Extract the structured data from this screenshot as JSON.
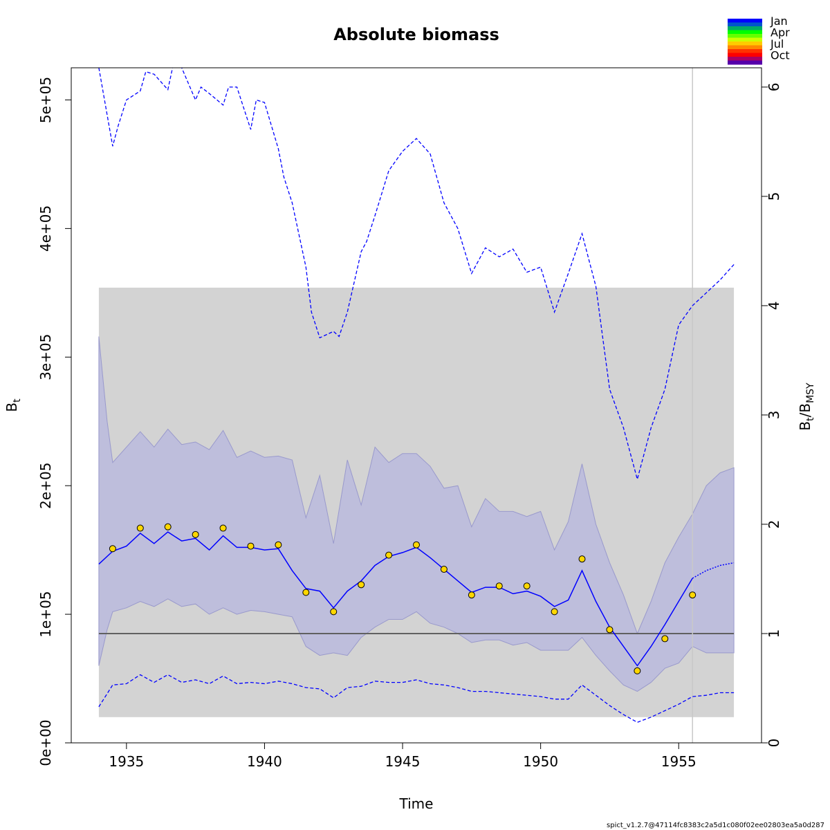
{
  "chart_data": {
    "type": "line",
    "title": "Absolute biomass",
    "xlabel": "Time",
    "ylabel": "B",
    "ylabel_sub": "t",
    "y2label_num": "B",
    "y2label_num_sub": "t",
    "y2label_den": "B",
    "y2label_den_sub": "MSY",
    "xlim": [
      1933.0,
      1958.0
    ],
    "ylim": [
      0,
      525000
    ],
    "y2_per_unit": 85000,
    "x_ticks": [
      1935,
      1940,
      1945,
      1950,
      1955
    ],
    "x_tick_labels": [
      "1935",
      "1940",
      "1945",
      "1950",
      "1955"
    ],
    "y_ticks": [
      0,
      100000,
      200000,
      300000,
      400000,
      500000
    ],
    "y_tick_labels": [
      "0e+00",
      "1e+05",
      "2e+05",
      "3e+05",
      "4e+05",
      "5e+05"
    ],
    "y2_ticks": [
      0,
      1,
      2,
      3,
      4,
      5,
      6
    ],
    "y2_tick_labels": [
      "0",
      "1",
      "2",
      "3",
      "4",
      "5",
      "6"
    ],
    "bmsy_ci": [
      20000,
      354000
    ],
    "bmsy_ci_x": [
      1934.0,
      1957.0
    ],
    "bmsy": 85000,
    "vline_x": 1955.5,
    "observations": {
      "x": [
        1934.5,
        1935.5,
        1936.5,
        1937.5,
        1938.5,
        1939.5,
        1940.5,
        1941.5,
        1942.5,
        1943.5,
        1944.5,
        1945.5,
        1946.5,
        1947.5,
        1948.5,
        1949.5,
        1950.5,
        1951.5,
        1952.5,
        1953.5,
        1954.5,
        1955.5
      ],
      "y": [
        151000,
        167000,
        168000,
        162000,
        167000,
        153000,
        154000,
        117000,
        102000,
        123000,
        146000,
        154000,
        135000,
        115000,
        122000,
        122000,
        102000,
        143000,
        88000,
        56000,
        81000,
        115000
      ]
    },
    "estimate": {
      "x": [
        1934.0,
        1934.5,
        1935.0,
        1935.5,
        1936.0,
        1936.5,
        1937.0,
        1937.5,
        1938.0,
        1938.5,
        1939.0,
        1939.5,
        1940.0,
        1940.5,
        1941.0,
        1941.5,
        1942.0,
        1942.5,
        1943.0,
        1943.5,
        1944.0,
        1944.5,
        1945.0,
        1945.5,
        1946.0,
        1946.5,
        1947.0,
        1947.5,
        1948.0,
        1948.5,
        1949.0,
        1949.5,
        1950.0,
        1950.5,
        1951.0,
        1951.5,
        1952.0,
        1952.5,
        1953.0,
        1953.5,
        1954.0,
        1954.5,
        1955.0,
        1955.5
      ],
      "y": [
        139000,
        149000,
        153000,
        163000,
        155000,
        164000,
        157000,
        159000,
        150000,
        161000,
        152000,
        152000,
        150000,
        151000,
        134000,
        120000,
        118000,
        105000,
        118000,
        126000,
        138000,
        145000,
        148000,
        152000,
        144000,
        135000,
        126000,
        117000,
        121000,
        121000,
        116000,
        118000,
        114000,
        106000,
        111000,
        134000,
        110000,
        90000,
        75000,
        60000,
        75000,
        92000,
        110000,
        128000
      ]
    },
    "forecast": {
      "x": [
        1955.5,
        1956.0,
        1956.5,
        1957.0
      ],
      "y": [
        128000,
        134000,
        138000,
        140000
      ]
    },
    "ci_upper": {
      "x": [
        1934.0,
        1934.3,
        1934.5,
        1935.0,
        1935.5,
        1936.0,
        1936.5,
        1937.0,
        1937.5,
        1938.0,
        1938.5,
        1939.0,
        1939.5,
        1940.0,
        1940.5,
        1941.0,
        1941.5,
        1942.0,
        1942.5,
        1943.0,
        1943.5,
        1944.0,
        1944.5,
        1945.0,
        1945.5,
        1946.0,
        1946.5,
        1947.0,
        1947.5,
        1948.0,
        1948.5,
        1949.0,
        1949.5,
        1950.0,
        1950.5,
        1951.0,
        1951.5,
        1952.0,
        1952.5,
        1953.0,
        1953.5,
        1954.0,
        1954.5,
        1955.0,
        1955.5,
        1956.0,
        1956.5,
        1957.0
      ],
      "y": [
        316000,
        250000,
        218000,
        230000,
        242000,
        230000,
        244000,
        232000,
        234000,
        228000,
        243000,
        222000,
        227000,
        222000,
        223000,
        220000,
        175000,
        208000,
        155000,
        220000,
        185000,
        230000,
        218000,
        225000,
        225000,
        215000,
        198000,
        200000,
        168000,
        190000,
        180000,
        180000,
        176000,
        180000,
        150000,
        172000,
        217000,
        170000,
        140000,
        115000,
        85000,
        110000,
        140000,
        160000,
        178000,
        200000,
        210000,
        214000
      ]
    },
    "ci_lower": {
      "x": [
        1934.0,
        1934.3,
        1934.5,
        1935.0,
        1935.5,
        1936.0,
        1936.5,
        1937.0,
        1937.5,
        1938.0,
        1938.5,
        1939.0,
        1939.5,
        1940.0,
        1940.5,
        1941.0,
        1941.5,
        1942.0,
        1942.5,
        1943.0,
        1943.5,
        1944.0,
        1944.5,
        1945.0,
        1945.5,
        1946.0,
        1946.5,
        1947.0,
        1947.5,
        1948.0,
        1948.5,
        1949.0,
        1949.5,
        1950.0,
        1950.5,
        1951.0,
        1951.5,
        1952.0,
        1952.5,
        1953.0,
        1953.5,
        1954.0,
        1954.5,
        1955.0,
        1955.5,
        1956.0,
        1956.5,
        1957.0
      ],
      "y": [
        60000,
        88000,
        102000,
        105000,
        110000,
        106000,
        112000,
        106000,
        108000,
        100000,
        105000,
        100000,
        103000,
        102000,
        100000,
        98000,
        75000,
        68000,
        70000,
        68000,
        82000,
        90000,
        96000,
        96000,
        102000,
        93000,
        90000,
        85000,
        78000,
        80000,
        80000,
        76000,
        78000,
        72000,
        72000,
        72000,
        82000,
        68000,
        56000,
        45000,
        40000,
        47000,
        58000,
        62000,
        75000,
        70000,
        70000,
        70000
      ]
    },
    "pi_upper": {
      "x": [
        1934.0,
        1934.5,
        1934.7,
        1935.0,
        1935.5,
        1935.7,
        1936.0,
        1936.5,
        1936.7,
        1937.0,
        1937.5,
        1937.7,
        1938.0,
        1938.5,
        1938.7,
        1939.0,
        1939.5,
        1939.7,
        1940.0,
        1940.5,
        1940.7,
        1941.0,
        1941.5,
        1941.7,
        1942.0,
        1942.5,
        1942.7,
        1943.0,
        1943.5,
        1943.7,
        1944.0,
        1944.5,
        1945.0,
        1945.5,
        1946.0,
        1946.5,
        1947.0,
        1947.5,
        1948.0,
        1948.5,
        1949.0,
        1949.5,
        1950.0,
        1950.5,
        1951.0,
        1951.5,
        1952.0,
        1952.5,
        1953.0,
        1953.5,
        1954.0,
        1954.5,
        1955.0,
        1955.5,
        1956.0,
        1956.5,
        1957.0
      ],
      "y": [
        525000,
        464000,
        480000,
        500000,
        507000,
        522000,
        520000,
        508000,
        528000,
        525000,
        500000,
        510000,
        505000,
        496000,
        510000,
        510000,
        477000,
        500000,
        498000,
        462000,
        440000,
        420000,
        370000,
        335000,
        315000,
        320000,
        316000,
        335000,
        382000,
        390000,
        410000,
        445000,
        460000,
        470000,
        458000,
        420000,
        400000,
        365000,
        385000,
        378000,
        384000,
        366000,
        370000,
        335000,
        365000,
        396000,
        355000,
        275000,
        245000,
        205000,
        245000,
        275000,
        325000,
        340000,
        350000,
        360000,
        372000
      ]
    },
    "pi_lower": {
      "x": [
        1934.0,
        1934.5,
        1935.0,
        1935.5,
        1936.0,
        1936.5,
        1937.0,
        1937.5,
        1938.0,
        1938.5,
        1939.0,
        1939.5,
        1940.0,
        1940.5,
        1941.0,
        1941.5,
        1942.0,
        1942.5,
        1943.0,
        1943.5,
        1944.0,
        1944.5,
        1945.0,
        1945.5,
        1946.0,
        1946.5,
        1947.0,
        1947.5,
        1948.0,
        1948.5,
        1949.0,
        1949.5,
        1950.0,
        1950.5,
        1951.0,
        1951.5,
        1952.0,
        1952.5,
        1953.0,
        1953.5,
        1954.0,
        1954.5,
        1955.0,
        1955.5,
        1956.0,
        1956.5,
        1957.0
      ],
      "y": [
        28000,
        45000,
        46000,
        53000,
        47000,
        53000,
        47000,
        49000,
        46000,
        52000,
        46000,
        47000,
        46000,
        48000,
        46000,
        43000,
        42000,
        35000,
        43000,
        44000,
        48000,
        47000,
        47000,
        49000,
        46000,
        45000,
        43000,
        40000,
        40000,
        39000,
        38000,
        37000,
        36000,
        34000,
        34000,
        45000,
        37000,
        29000,
        22000,
        16000,
        20000,
        25000,
        30000,
        36000,
        37000,
        39000,
        39000
      ]
    },
    "month_legend": [
      "Jan",
      "Apr",
      "Jul",
      "Oct"
    ],
    "month_colors": [
      "#0000ff",
      "#0055cc",
      "#00aa66",
      "#00ff00",
      "#66ff00",
      "#ccff00",
      "#ffcc00",
      "#ff8800",
      "#ff3300",
      "#ff0000",
      "#aa0066",
      "#5500aa"
    ],
    "colors": {
      "estimate": "#0000ff",
      "ci_fill": "#bbbbdd",
      "bmsy_band": "#d3d3d3",
      "bmsy_line": "#606060",
      "obs_fill": "#ffd700",
      "vline": "#c8c8c8"
    }
  },
  "footer": "spict_v1.2.7@47114fc8383c2a5d1c080f02ee02803ea5a0d287"
}
